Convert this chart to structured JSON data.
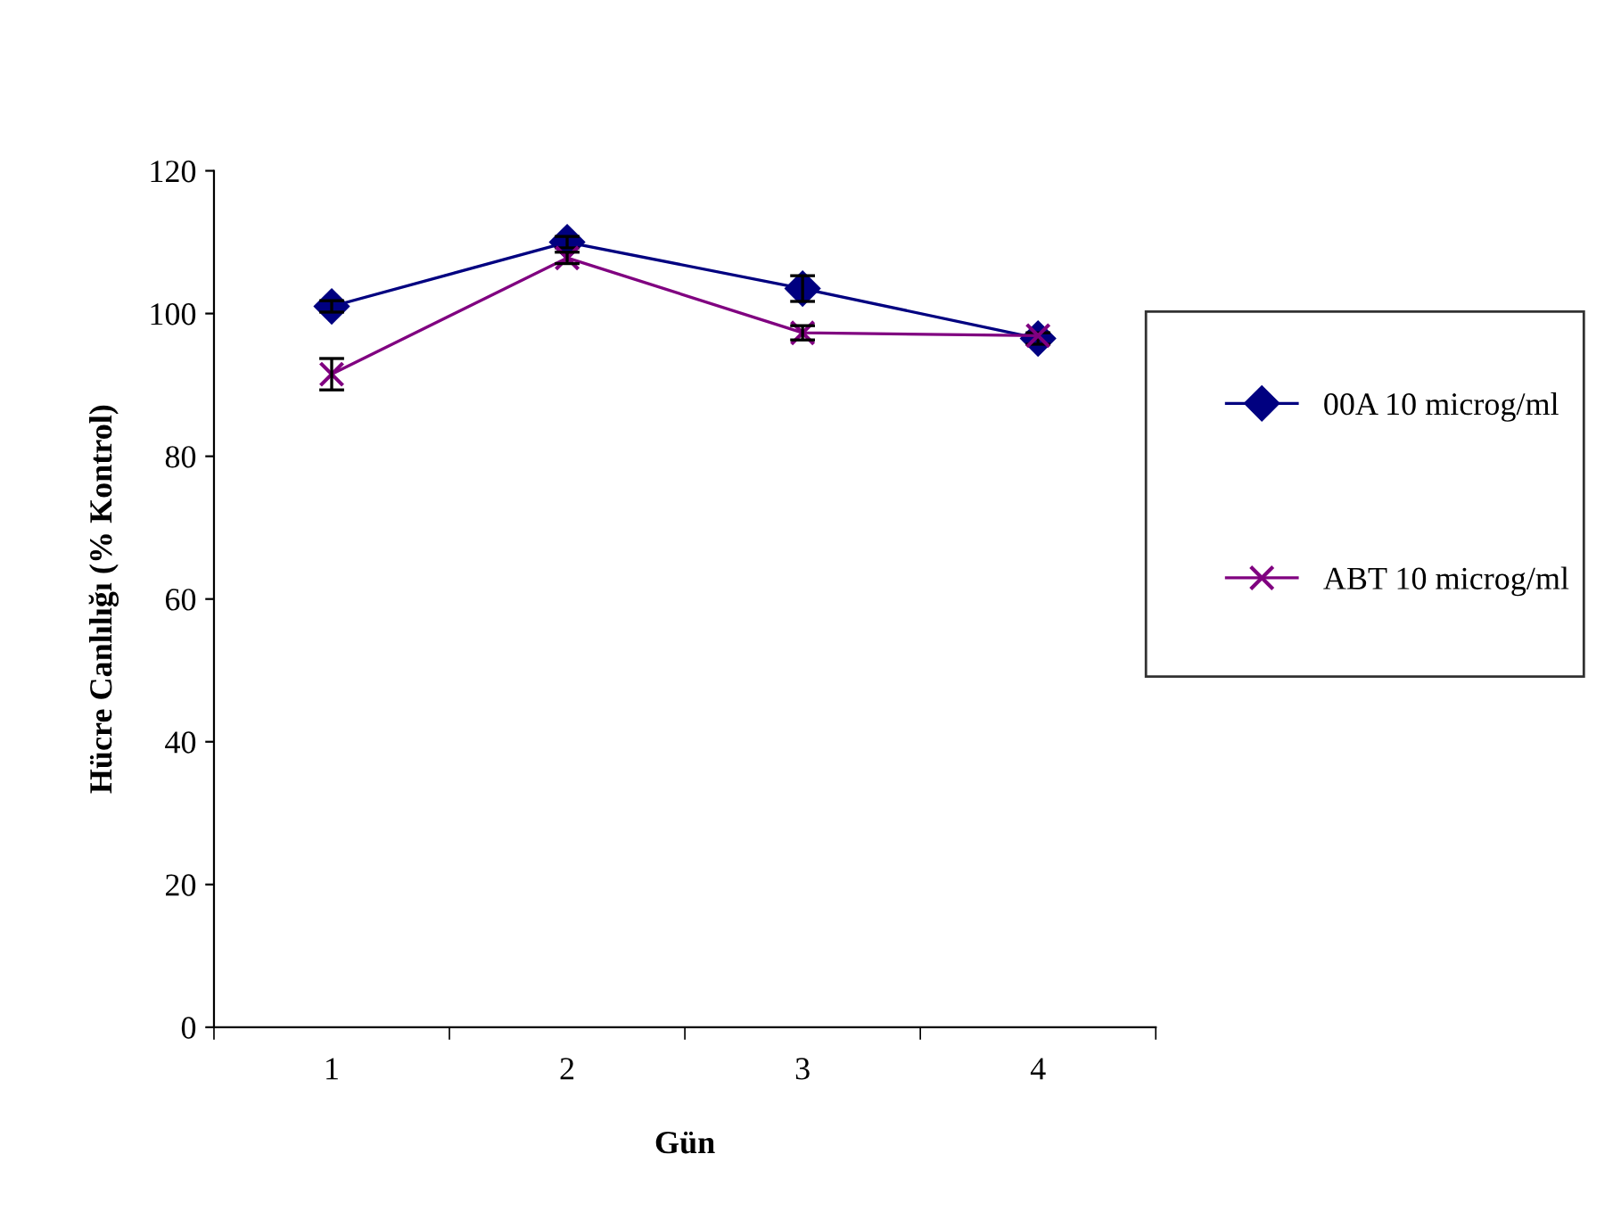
{
  "chart_data": {
    "type": "line",
    "xlabel": "Gün",
    "ylabel": "Hücre Canlılığı (% Kontrol)",
    "categories": [
      "1",
      "2",
      "3",
      "4"
    ],
    "series": [
      {
        "name": "00A 10 microg/ml",
        "color": "#000080",
        "marker": "diamond",
        "values": [
          101,
          110,
          103.5,
          96.5
        ],
        "errors": [
          0.8,
          0.8,
          1.8,
          0.8
        ]
      },
      {
        "name": "ABT 10 microg/ml",
        "color": "#800080",
        "marker": "cross",
        "values": [
          91.5,
          107.8,
          97.3,
          96.9
        ],
        "errors": [
          2.2,
          0.8,
          1,
          null
        ]
      }
    ],
    "ylim": [
      0,
      120
    ],
    "yticks": [
      0,
      20,
      40,
      60,
      80,
      100,
      120
    ],
    "legend": "right",
    "grid": false
  }
}
